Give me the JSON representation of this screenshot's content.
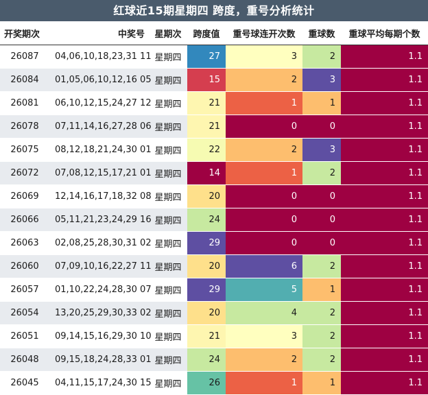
{
  "title": "红球近15期星期四 跨度，重号分析统计",
  "headers": [
    "开奖期次",
    "中奖号",
    "星期次",
    "跨度值",
    "重号球连开次数",
    "重球数",
    "重球平均每期个数"
  ],
  "rows": [
    {
      "issue": "26087",
      "numbers": "04,06,10,18,23,31 11",
      "weekday": "星期四",
      "span": "27",
      "consec": "3",
      "repeat": "2",
      "avg": "1.1",
      "span_bg": "#3288bd",
      "consec_bg": "#ffffbf",
      "repeat_bg": "#c7e9a0",
      "span_fg": "#ffffff",
      "consec_fg": "#1a1a1a",
      "repeat_fg": "#1a1a1a"
    },
    {
      "issue": "26084",
      "numbers": "01,05,06,10,12,16 05",
      "weekday": "星期四",
      "span": "15",
      "consec": "2",
      "repeat": "3",
      "avg": "1.1",
      "span_bg": "#d53e4f",
      "consec_bg": "#fdbe6e",
      "repeat_bg": "#5e4fa2",
      "span_fg": "#ffffff",
      "consec_fg": "#1a1a1a",
      "repeat_fg": "#ffffff"
    },
    {
      "issue": "26081",
      "numbers": "06,10,12,15,24,27 12",
      "weekday": "星期四",
      "span": "21",
      "consec": "1",
      "repeat": "1",
      "avg": "1.1",
      "span_bg": "#fef6b0",
      "consec_bg": "#ec6145",
      "repeat_bg": "#fdbe6e",
      "span_fg": "#1a1a1a",
      "consec_fg": "#ffffff",
      "repeat_fg": "#1a1a1a"
    },
    {
      "issue": "26078",
      "numbers": "07,11,14,16,27,28 06",
      "weekday": "星期四",
      "span": "21",
      "consec": "0",
      "repeat": "0",
      "avg": "1.1",
      "span_bg": "#fef6b0",
      "consec_bg": "#9e0142",
      "repeat_bg": "#9e0142",
      "span_fg": "#1a1a1a",
      "consec_fg": "#ffffff",
      "repeat_fg": "#ffffff"
    },
    {
      "issue": "26075",
      "numbers": "08,12,18,21,24,30 01",
      "weekday": "星期四",
      "span": "22",
      "consec": "2",
      "repeat": "3",
      "avg": "1.1",
      "span_bg": "#f6fbb2",
      "consec_bg": "#fdbe6e",
      "repeat_bg": "#5e4fa2",
      "span_fg": "#1a1a1a",
      "consec_fg": "#1a1a1a",
      "repeat_fg": "#ffffff"
    },
    {
      "issue": "26072",
      "numbers": "07,08,12,15,17,21 01",
      "weekday": "星期四",
      "span": "14",
      "consec": "1",
      "repeat": "2",
      "avg": "1.1",
      "span_bg": "#9e0142",
      "consec_bg": "#ec6145",
      "repeat_bg": "#c7e9a0",
      "span_fg": "#ffffff",
      "consec_fg": "#ffffff",
      "repeat_fg": "#1a1a1a"
    },
    {
      "issue": "26069",
      "numbers": "12,14,16,17,18,32 08",
      "weekday": "星期四",
      "span": "20",
      "consec": "0",
      "repeat": "0",
      "avg": "1.1",
      "span_bg": "#fee08b",
      "consec_bg": "#9e0142",
      "repeat_bg": "#9e0142",
      "span_fg": "#1a1a1a",
      "consec_fg": "#ffffff",
      "repeat_fg": "#ffffff"
    },
    {
      "issue": "26066",
      "numbers": "05,11,21,23,24,29 16",
      "weekday": "星期四",
      "span": "24",
      "consec": "0",
      "repeat": "0",
      "avg": "1.1",
      "span_bg": "#c7e9a0",
      "consec_bg": "#9e0142",
      "repeat_bg": "#9e0142",
      "span_fg": "#1a1a1a",
      "consec_fg": "#ffffff",
      "repeat_fg": "#ffffff"
    },
    {
      "issue": "26063",
      "numbers": "02,08,25,28,30,31 02",
      "weekday": "星期四",
      "span": "29",
      "consec": "0",
      "repeat": "0",
      "avg": "1.1",
      "span_bg": "#5e4fa2",
      "consec_bg": "#9e0142",
      "repeat_bg": "#9e0142",
      "span_fg": "#ffffff",
      "consec_fg": "#ffffff",
      "repeat_fg": "#ffffff"
    },
    {
      "issue": "26060",
      "numbers": "07,09,10,16,22,27 11",
      "weekday": "星期四",
      "span": "20",
      "consec": "6",
      "repeat": "2",
      "avg": "1.1",
      "span_bg": "#fee08b",
      "consec_bg": "#5e4fa2",
      "repeat_bg": "#c7e9a0",
      "span_fg": "#1a1a1a",
      "consec_fg": "#ffffff",
      "repeat_fg": "#1a1a1a"
    },
    {
      "issue": "26057",
      "numbers": "01,10,22,24,28,30 07",
      "weekday": "星期四",
      "span": "29",
      "consec": "5",
      "repeat": "1",
      "avg": "1.1",
      "span_bg": "#5e4fa2",
      "consec_bg": "#52aeb0",
      "repeat_bg": "#fdbe6e",
      "span_fg": "#ffffff",
      "consec_fg": "#ffffff",
      "repeat_fg": "#1a1a1a"
    },
    {
      "issue": "26054",
      "numbers": "13,20,25,29,30,33 02",
      "weekday": "星期四",
      "span": "20",
      "consec": "4",
      "repeat": "2",
      "avg": "1.1",
      "span_bg": "#fee08b",
      "consec_bg": "#c7e9a0",
      "repeat_bg": "#c7e9a0",
      "span_fg": "#1a1a1a",
      "consec_fg": "#1a1a1a",
      "repeat_fg": "#1a1a1a"
    },
    {
      "issue": "26051",
      "numbers": "09,14,15,16,29,30 10",
      "weekday": "星期四",
      "span": "21",
      "consec": "3",
      "repeat": "2",
      "avg": "1.1",
      "span_bg": "#fef6b0",
      "consec_bg": "#ffffbf",
      "repeat_bg": "#c7e9a0",
      "span_fg": "#1a1a1a",
      "consec_fg": "#1a1a1a",
      "repeat_fg": "#1a1a1a"
    },
    {
      "issue": "26048",
      "numbers": "09,15,18,24,28,33 01",
      "weekday": "星期四",
      "span": "24",
      "consec": "2",
      "repeat": "2",
      "avg": "1.1",
      "span_bg": "#c7e9a0",
      "consec_bg": "#fdbe6e",
      "repeat_bg": "#c7e9a0",
      "span_fg": "#1a1a1a",
      "consec_fg": "#1a1a1a",
      "repeat_fg": "#1a1a1a"
    },
    {
      "issue": "26045",
      "numbers": "04,11,15,17,24,30 15",
      "weekday": "星期四",
      "span": "26",
      "consec": "1",
      "repeat": "1",
      "avg": "1.1",
      "span_bg": "#66c2a5",
      "consec_bg": "#ec6145",
      "repeat_bg": "#fdbe6e",
      "span_fg": "#1a1a1a",
      "consec_fg": "#ffffff",
      "repeat_fg": "#1a1a1a"
    }
  ],
  "avg_bg": "#9e0142",
  "avg_fg": "#ffffff"
}
